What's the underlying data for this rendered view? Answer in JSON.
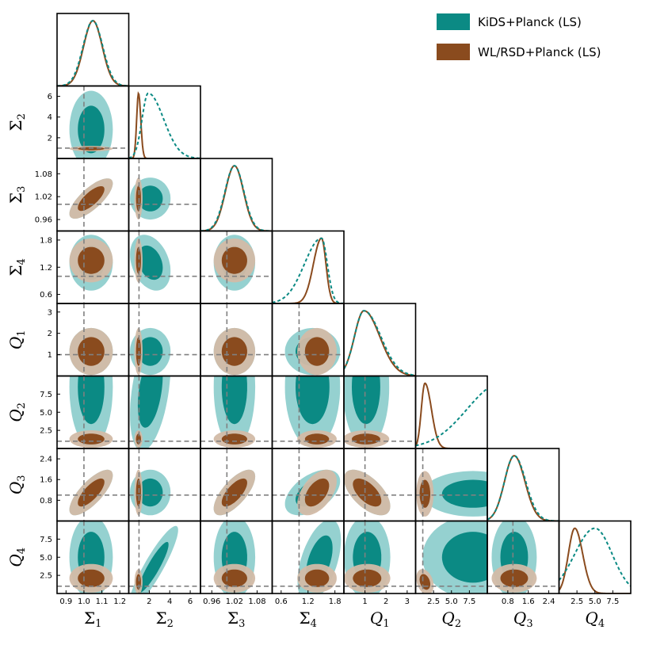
{
  "colors": {
    "kids_outer": "#8fcfcd",
    "kids_inner": "#0b8a84",
    "kids_line": "#0b8a84",
    "wl_outer": "#d2bba7",
    "wl_inner": "#8a4b1e",
    "wl_line": "#8a4b1e",
    "fiducial": "#808080",
    "frame": "#000000"
  },
  "chart_data": {
    "type": "corner",
    "legend": {
      "placement": "top-right",
      "entries": [
        {
          "label": "KiDS+Planck (LS)",
          "color": "#0b8a84"
        },
        {
          "label": "WL/RSD+Planck (LS)",
          "color": "#8a4b1e"
        }
      ]
    },
    "parameters": [
      {
        "key": "S1",
        "base": "Σ",
        "sub": "1",
        "range": [
          0.85,
          1.25
        ],
        "fiducial": 1.0,
        "ticks": [
          {
            "v": 0.9,
            "t": "0.9"
          },
          {
            "v": 1.0,
            "t": "1.0"
          },
          {
            "v": 1.1,
            "t": "1.1"
          },
          {
            "v": 1.2,
            "t": "1.2"
          }
        ]
      },
      {
        "key": "S2",
        "base": "Σ",
        "sub": "2",
        "range": [
          0,
          7
        ],
        "fiducial": 1.0,
        "ticks": [
          {
            "v": 2,
            "t": "2"
          },
          {
            "v": 4,
            "t": "4"
          },
          {
            "v": 6,
            "t": "6"
          }
        ]
      },
      {
        "key": "S3",
        "base": "Σ",
        "sub": "3",
        "range": [
          0.93,
          1.12
        ],
        "fiducial": 1.0,
        "ticks": [
          {
            "v": 0.96,
            "t": "0.96"
          },
          {
            "v": 1.02,
            "t": "1.02"
          },
          {
            "v": 1.08,
            "t": "1.08"
          }
        ]
      },
      {
        "key": "S4",
        "base": "Σ",
        "sub": "4",
        "range": [
          0.4,
          2.0
        ],
        "fiducial": 1.0,
        "ticks": [
          {
            "v": 0.6,
            "t": "0.6"
          },
          {
            "v": 1.2,
            "t": "1.2"
          },
          {
            "v": 1.8,
            "t": "1.8"
          }
        ]
      },
      {
        "key": "Q1",
        "base": "Q",
        "sub": "1",
        "range": [
          0,
          3.4
        ],
        "fiducial": 1.0,
        "ticks": [
          {
            "v": 1,
            "t": "1"
          },
          {
            "v": 2,
            "t": "2"
          },
          {
            "v": 3,
            "t": "3"
          }
        ]
      },
      {
        "key": "Q2",
        "base": "Q",
        "sub": "2",
        "range": [
          0,
          10
        ],
        "fiducial": 1.0,
        "ticks": [
          {
            "v": 2.5,
            "t": "2.5"
          },
          {
            "v": 5.0,
            "t": "5.0"
          },
          {
            "v": 7.5,
            "t": "7.5"
          }
        ]
      },
      {
        "key": "Q3",
        "base": "Q",
        "sub": "3",
        "range": [
          0,
          2.8
        ],
        "fiducial": 1.0,
        "ticks": [
          {
            "v": 0.8,
            "t": "0.8"
          },
          {
            "v": 1.6,
            "t": "1.6"
          },
          {
            "v": 2.4,
            "t": "2.4"
          }
        ]
      },
      {
        "key": "Q4",
        "base": "Q",
        "sub": "4",
        "range": [
          0,
          10
        ],
        "fiducial": 1.0,
        "ticks": [
          {
            "v": 2.5,
            "t": "2.5"
          },
          {
            "v": 5.0,
            "t": "5.0"
          },
          {
            "v": 7.5,
            "t": "7.5"
          }
        ]
      }
    ],
    "marginals": [
      {
        "param": "S1",
        "kids": {
          "peak": 1.05,
          "s1": 0.055,
          "s2": 0.055
        },
        "wl": {
          "peak": 1.05,
          "s1": 0.052,
          "s2": 0.052
        }
      },
      {
        "param": "S2",
        "kids": {
          "peak": 1.9,
          "s1": 0.6,
          "s2": 1.5
        },
        "wl": {
          "peak": 0.95,
          "s1": 0.18,
          "s2": 0.22
        }
      },
      {
        "param": "S3",
        "kids": {
          "peak": 1.02,
          "s1": 0.025,
          "s2": 0.025
        },
        "wl": {
          "peak": 1.02,
          "s1": 0.024,
          "s2": 0.024
        }
      },
      {
        "param": "S4",
        "kids": {
          "peak": 1.5,
          "s1": 0.38,
          "s2": 0.13
        },
        "wl": {
          "peak": 1.5,
          "s1": 0.18,
          "s2": 0.1
        }
      },
      {
        "param": "Q1",
        "kids": {
          "peak": 0.95,
          "s1": 0.45,
          "s2": 0.8
        },
        "wl": {
          "peak": 0.95,
          "s1": 0.45,
          "s2": 0.75
        }
      },
      {
        "param": "Q2",
        "kids": {
          "peak": 12,
          "s1": 4.8,
          "s2": 3
        },
        "wl": {
          "peak": 1.3,
          "s1": 0.5,
          "s2": 0.9
        }
      },
      {
        "param": "Q3",
        "kids": {
          "peak": 1.05,
          "s1": 0.38,
          "s2": 0.45
        },
        "wl": {
          "peak": 1.05,
          "s1": 0.38,
          "s2": 0.42
        }
      },
      {
        "param": "Q4",
        "kids": {
          "peak": 5.0,
          "s1": 2.8,
          "s2": 2.4
        },
        "wl": {
          "peak": 2.2,
          "s1": 0.9,
          "s2": 1.1
        }
      }
    ],
    "contours": [
      {
        "x": "S1",
        "y": "S2",
        "kids": {
          "cx": 1.04,
          "cy": 2.8,
          "sx": 0.055,
          "sy": 1.7,
          "rho": 0.0
        },
        "wl": {
          "cx": 1.04,
          "cy": 0.95,
          "sx": 0.055,
          "sy": 0.12,
          "rho": 0.0
        }
      },
      {
        "x": "S1",
        "y": "S3",
        "kids": {
          "cx": 1.04,
          "cy": 1.015,
          "sx": 0.055,
          "sy": 0.024,
          "rho": 0.75
        },
        "wl": {
          "cx": 1.04,
          "cy": 1.015,
          "sx": 0.055,
          "sy": 0.024,
          "rho": 0.75
        }
      },
      {
        "x": "S1",
        "y": "S4",
        "kids": {
          "cx": 1.04,
          "cy": 1.3,
          "sx": 0.055,
          "sy": 0.28,
          "rho": 0.0
        },
        "wl": {
          "cx": 1.04,
          "cy": 1.35,
          "sx": 0.055,
          "sy": 0.22,
          "rho": 0.0
        }
      },
      {
        "x": "S1",
        "y": "Q1",
        "kids": {
          "cx": 1.04,
          "cy": 1.15,
          "sx": 0.055,
          "sy": 0.5,
          "rho": 0.0
        },
        "wl": {
          "cx": 1.04,
          "cy": 1.15,
          "sx": 0.055,
          "sy": 0.5,
          "rho": 0.0
        }
      },
      {
        "x": "S1",
        "y": "Q2",
        "kids": {
          "cx": 1.04,
          "cy": 8.5,
          "sx": 0.055,
          "sy": 3.8,
          "rho": 0.0
        },
        "wl": {
          "cx": 1.04,
          "cy": 1.3,
          "sx": 0.055,
          "sy": 0.55,
          "rho": 0.0
        }
      },
      {
        "x": "S1",
        "y": "Q3",
        "kids": {
          "cx": 1.04,
          "cy": 1.1,
          "sx": 0.055,
          "sy": 0.4,
          "rho": 0.75
        },
        "wl": {
          "cx": 1.04,
          "cy": 1.1,
          "sx": 0.055,
          "sy": 0.4,
          "rho": 0.75
        }
      },
      {
        "x": "S1",
        "y": "Q4",
        "kids": {
          "cx": 1.04,
          "cy": 5.0,
          "sx": 0.055,
          "sy": 2.6,
          "rho": 0.0
        },
        "wl": {
          "cx": 1.04,
          "cy": 2.1,
          "sx": 0.055,
          "sy": 0.9,
          "rho": 0.0
        }
      },
      {
        "x": "S2",
        "y": "S3",
        "kids": {
          "cx": 2.1,
          "cy": 1.015,
          "sx": 0.9,
          "sy": 0.025,
          "rho": 0.0
        },
        "wl": {
          "cx": 0.95,
          "cy": 1.015,
          "sx": 0.18,
          "sy": 0.025,
          "rho": 0.0
        }
      },
      {
        "x": "S2",
        "y": "S4",
        "kids": {
          "cx": 2.1,
          "cy": 1.3,
          "sx": 0.9,
          "sy": 0.28,
          "rho": -0.3
        },
        "wl": {
          "cx": 0.95,
          "cy": 1.35,
          "sx": 0.18,
          "sy": 0.22,
          "rho": 0.0
        }
      },
      {
        "x": "S2",
        "y": "Q1",
        "kids": {
          "cx": 2.1,
          "cy": 1.15,
          "sx": 0.9,
          "sy": 0.5,
          "rho": 0.0
        },
        "wl": {
          "cx": 0.95,
          "cy": 1.15,
          "sx": 0.18,
          "sy": 0.5,
          "rho": 0.0
        }
      },
      {
        "x": "S2",
        "y": "Q2",
        "kids": {
          "cx": 2.1,
          "cy": 8.0,
          "sx": 0.9,
          "sy": 3.8,
          "rho": 0.4
        },
        "wl": {
          "cx": 0.95,
          "cy": 1.3,
          "sx": 0.18,
          "sy": 0.55,
          "rho": 0.0
        }
      },
      {
        "x": "S2",
        "y": "Q3",
        "kids": {
          "cx": 2.1,
          "cy": 1.1,
          "sx": 0.9,
          "sy": 0.4,
          "rho": 0.0
        },
        "wl": {
          "cx": 0.95,
          "cy": 1.1,
          "sx": 0.18,
          "sy": 0.4,
          "rho": 0.0
        }
      },
      {
        "x": "S2",
        "y": "Q4",
        "kids": {
          "cx": 2.4,
          "cy": 3.6,
          "sx": 1.1,
          "sy": 2.6,
          "rho": 0.9
        },
        "wl": {
          "cx": 0.95,
          "cy": 1.6,
          "sx": 0.18,
          "sy": 0.8,
          "rho": 0.0
        }
      },
      {
        "x": "S3",
        "y": "S4",
        "kids": {
          "cx": 1.02,
          "cy": 1.3,
          "sx": 0.025,
          "sy": 0.28,
          "rho": 0.0
        },
        "wl": {
          "cx": 1.02,
          "cy": 1.35,
          "sx": 0.025,
          "sy": 0.22,
          "rho": 0.0
        }
      },
      {
        "x": "S3",
        "y": "Q1",
        "kids": {
          "cx": 1.02,
          "cy": 1.15,
          "sx": 0.025,
          "sy": 0.5,
          "rho": 0.0
        },
        "wl": {
          "cx": 1.02,
          "cy": 1.15,
          "sx": 0.025,
          "sy": 0.5,
          "rho": 0.0
        }
      },
      {
        "x": "S3",
        "y": "Q2",
        "kids": {
          "cx": 1.02,
          "cy": 8.5,
          "sx": 0.025,
          "sy": 3.8,
          "rho": 0.0
        },
        "wl": {
          "cx": 1.02,
          "cy": 1.3,
          "sx": 0.025,
          "sy": 0.55,
          "rho": 0.0
        }
      },
      {
        "x": "S3",
        "y": "Q3",
        "kids": {
          "cx": 1.02,
          "cy": 1.1,
          "sx": 0.025,
          "sy": 0.4,
          "rho": 0.7
        },
        "wl": {
          "cx": 1.02,
          "cy": 1.1,
          "sx": 0.025,
          "sy": 0.4,
          "rho": 0.7
        }
      },
      {
        "x": "S3",
        "y": "Q4",
        "kids": {
          "cx": 1.02,
          "cy": 5.0,
          "sx": 0.025,
          "sy": 2.6,
          "rho": 0.0
        },
        "wl": {
          "cx": 1.02,
          "cy": 2.1,
          "sx": 0.025,
          "sy": 0.9,
          "rho": 0.0
        }
      },
      {
        "x": "S4",
        "y": "Q1",
        "kids": {
          "cx": 1.3,
          "cy": 1.15,
          "sx": 0.28,
          "sy": 0.5,
          "rho": 0.0
        },
        "wl": {
          "cx": 1.4,
          "cy": 1.15,
          "sx": 0.2,
          "sy": 0.5,
          "rho": 0.0
        }
      },
      {
        "x": "S4",
        "y": "Q2",
        "kids": {
          "cx": 1.3,
          "cy": 8.5,
          "sx": 0.28,
          "sy": 3.8,
          "rho": 0.0
        },
        "wl": {
          "cx": 1.4,
          "cy": 1.3,
          "sx": 0.2,
          "sy": 0.55,
          "rho": 0.0
        }
      },
      {
        "x": "S4",
        "y": "Q3",
        "kids": {
          "cx": 1.3,
          "cy": 1.1,
          "sx": 0.28,
          "sy": 0.4,
          "rho": 0.5
        },
        "wl": {
          "cx": 1.4,
          "cy": 1.1,
          "sx": 0.2,
          "sy": 0.4,
          "rho": 0.5
        }
      },
      {
        "x": "S4",
        "y": "Q4",
        "kids": {
          "cx": 1.45,
          "cy": 4.5,
          "sx": 0.22,
          "sy": 2.6,
          "rho": 0.5
        },
        "wl": {
          "cx": 1.4,
          "cy": 2.1,
          "sx": 0.2,
          "sy": 0.9,
          "rho": 0.0
        }
      },
      {
        "x": "Q1",
        "y": "Q2",
        "kids": {
          "cx": 1.05,
          "cy": 8.5,
          "sx": 0.5,
          "sy": 3.8,
          "rho": 0.0
        },
        "wl": {
          "cx": 1.05,
          "cy": 1.3,
          "sx": 0.5,
          "sy": 0.55,
          "rho": 0.0
        }
      },
      {
        "x": "Q1",
        "y": "Q3",
        "kids": {
          "cx": 1.1,
          "cy": 1.1,
          "sx": 0.5,
          "sy": 0.4,
          "rho": -0.6
        },
        "wl": {
          "cx": 1.1,
          "cy": 1.1,
          "sx": 0.5,
          "sy": 0.4,
          "rho": -0.6
        }
      },
      {
        "x": "Q1",
        "y": "Q4",
        "kids": {
          "cx": 1.1,
          "cy": 5.0,
          "sx": 0.5,
          "sy": 2.6,
          "rho": 0.0
        },
        "wl": {
          "cx": 1.1,
          "cy": 2.1,
          "sx": 0.5,
          "sy": 0.9,
          "rho": 0.0
        }
      },
      {
        "x": "Q2",
        "y": "Q3",
        "kids": {
          "cx": 8.0,
          "cy": 1.05,
          "sx": 3.2,
          "sy": 0.4,
          "rho": 0.0
        },
        "wl": {
          "cx": 1.3,
          "cy": 1.05,
          "sx": 0.55,
          "sy": 0.4,
          "rho": 0.0
        }
      },
      {
        "x": "Q2",
        "y": "Q4",
        "kids": {
          "cx": 8.0,
          "cy": 5.0,
          "sx": 3.2,
          "sy": 2.6,
          "rho": 0.0
        },
        "wl": {
          "cx": 1.3,
          "cy": 1.6,
          "sx": 0.55,
          "sy": 0.8,
          "rho": -0.3
        }
      },
      {
        "x": "Q3",
        "y": "Q4",
        "kids": {
          "cx": 1.05,
          "cy": 5.0,
          "sx": 0.4,
          "sy": 2.6,
          "rho": 0.0
        },
        "wl": {
          "cx": 1.05,
          "cy": 2.1,
          "sx": 0.4,
          "sy": 0.9,
          "rho": 0.0
        }
      }
    ]
  }
}
